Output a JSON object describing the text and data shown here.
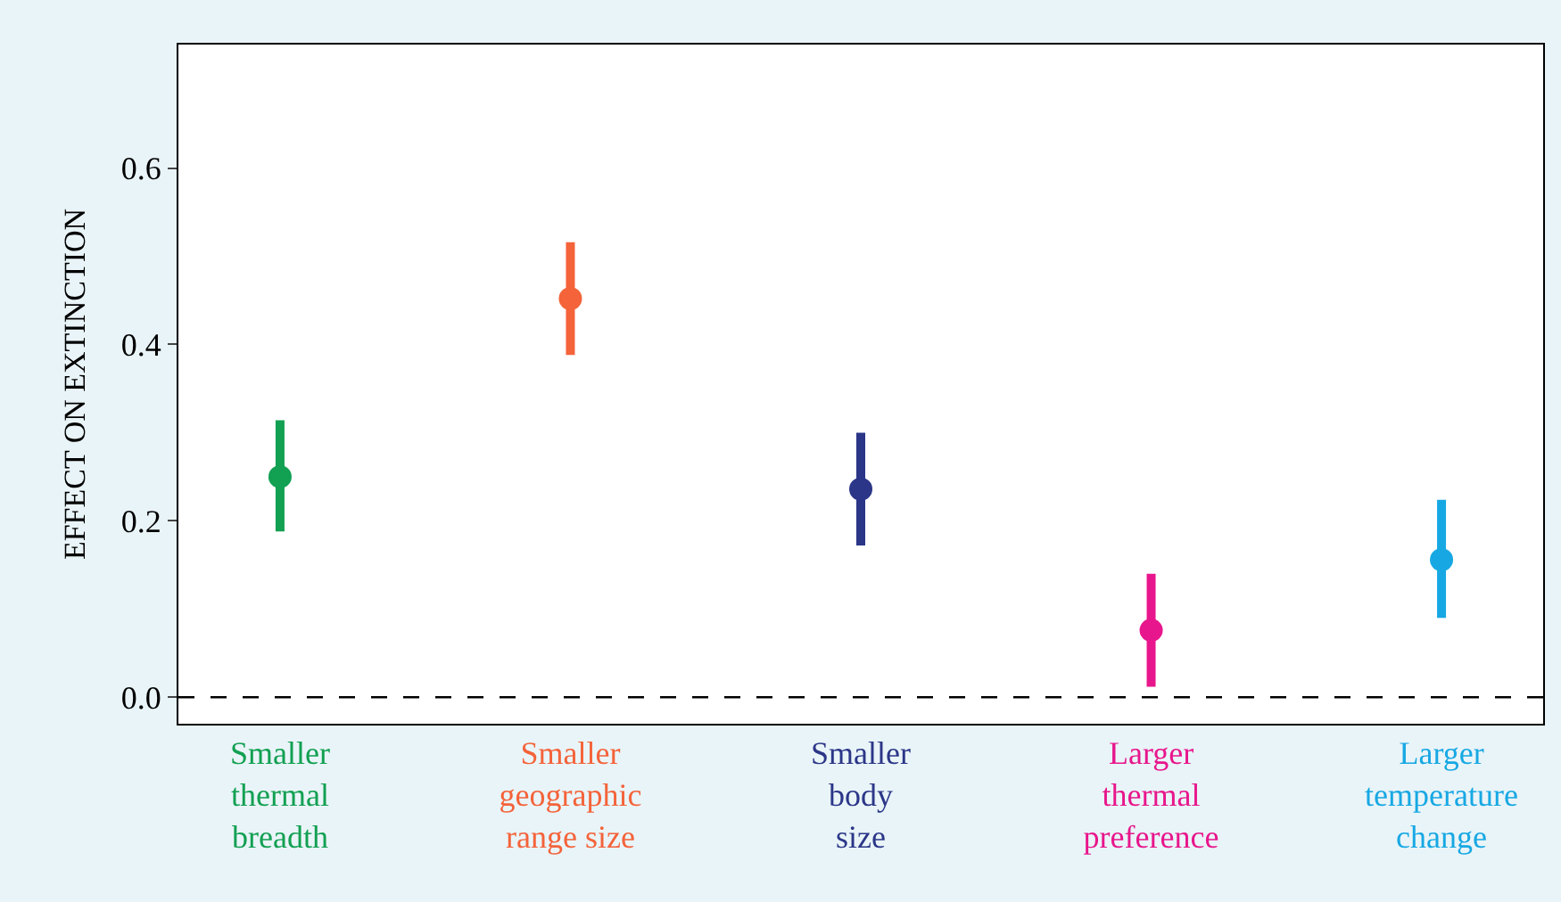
{
  "chart_data": {
    "type": "scatter",
    "ylabel": "EFFECT ON EXTINCTION",
    "categories": [
      "Smaller\nthermal\nbreadth",
      "Smaller\ngeographic\nrange size",
      "Smaller\nbody\nsize",
      "Larger\nthermal\npreference",
      "Larger\ntemperature\nchange"
    ],
    "values": [
      0.25,
      0.452,
      0.236,
      0.076,
      0.156
    ],
    "errors": [
      [
        0.188,
        0.314
      ],
      [
        0.388,
        0.516
      ],
      [
        0.172,
        0.3
      ],
      [
        0.012,
        0.14
      ],
      [
        0.09,
        0.224
      ]
    ],
    "colors": [
      "#12a052",
      "#f4633a",
      "#2b3688",
      "#e8168c",
      "#17a8e3"
    ],
    "ylim": [
      -0.03,
      0.74
    ],
    "yticks": [
      {
        "value": 0,
        "label": "0.0"
      },
      0.2,
      0.4,
      0.6
    ],
    "ref_lines": [
      {
        "axis": "y",
        "value": 0,
        "color": "#000000",
        "line_style": "dashed"
      }
    ],
    "marker": "circle"
  }
}
